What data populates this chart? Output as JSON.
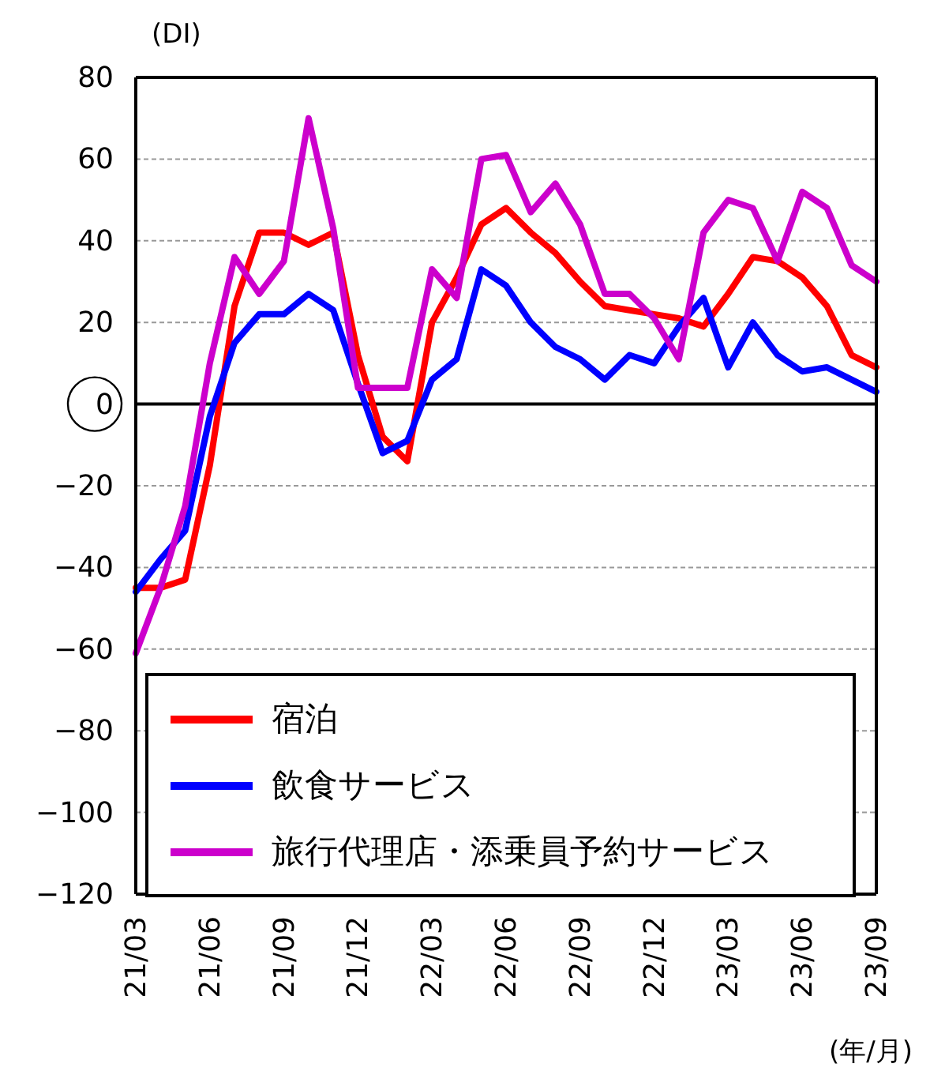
{
  "chart_data": {
    "type": "line",
    "ylabel": "(DI)",
    "xlabel": "(年/月)",
    "categories": [
      "21/03",
      null,
      null,
      "21/06",
      null,
      null,
      "21/09",
      null,
      null,
      "21/12",
      null,
      null,
      "22/03",
      null,
      null,
      "22/06",
      null,
      null,
      "22/09",
      null,
      null,
      "22/12",
      null,
      null,
      "23/03",
      null,
      null,
      "23/06",
      null,
      null,
      "23/09"
    ],
    "series": [
      {
        "name": "宿泊",
        "color": "#ff0000",
        "values": [
          -45,
          -45,
          -43,
          -15,
          24,
          42,
          42,
          39,
          42,
          12,
          -8,
          -14,
          20,
          31,
          44,
          48,
          42,
          37,
          30,
          24,
          23,
          22,
          21,
          19,
          27,
          36,
          35,
          31,
          24,
          12,
          9
        ]
      },
      {
        "name": "飲食サービス",
        "color": "#0000ff",
        "values": [
          -46,
          -38,
          -31,
          -3,
          15,
          22,
          22,
          27,
          23,
          5,
          -12,
          -9,
          6,
          11,
          33,
          29,
          20,
          14,
          11,
          6,
          12,
          10,
          19,
          26,
          9,
          20,
          12,
          8,
          9,
          6,
          3
        ]
      },
      {
        "name": "旅行代理店・添乗員予約サービス",
        "color": "#cc00cc",
        "values": [
          -61,
          -45,
          -25,
          10,
          36,
          27,
          35,
          70,
          43,
          4,
          4,
          4,
          33,
          26,
          60,
          61,
          47,
          54,
          44,
          27,
          27,
          21,
          11,
          42,
          50,
          48,
          35,
          52,
          48,
          34,
          30
        ]
      }
    ],
    "ylim": [
      -120,
      80
    ],
    "yticks": [
      -120,
      -100,
      -80,
      -60,
      -40,
      -20,
      0,
      20,
      40,
      60,
      80
    ],
    "ref_lines": [
      {
        "axis": "y",
        "value": 0,
        "color": "#000000"
      }
    ],
    "grid": "y",
    "legend": "bottom left",
    "marker": "none",
    "line_style": "solid"
  }
}
